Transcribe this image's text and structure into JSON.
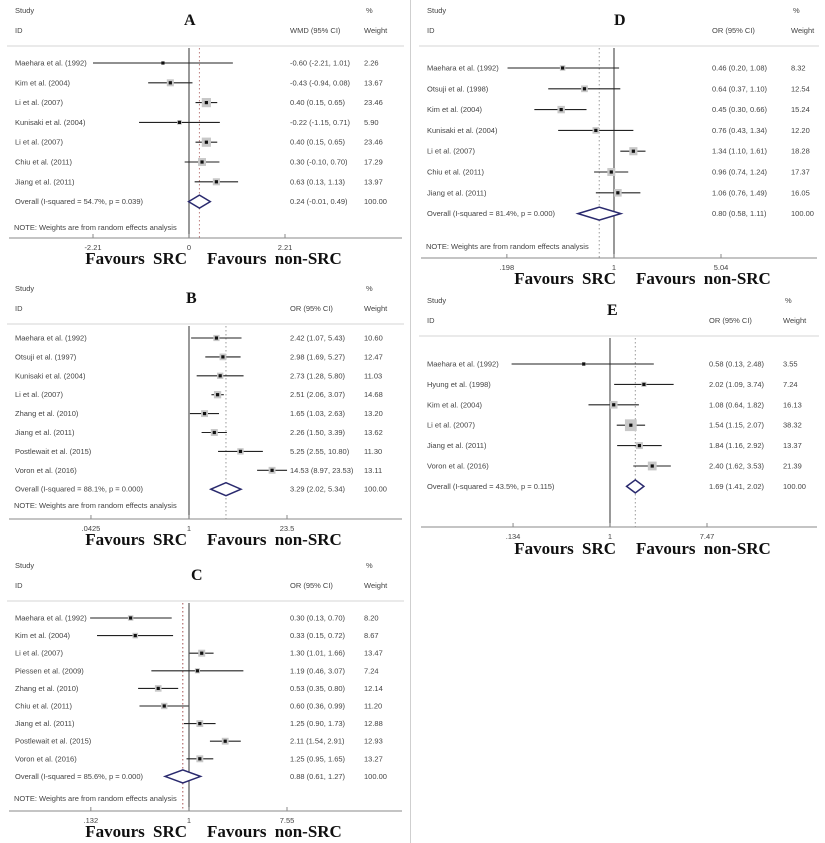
{
  "figure": {
    "background": "#ffffff",
    "note_text": "NOTE: Weights are from random effects analysis"
  },
  "colors": {
    "diamond": "#2a2a6e",
    "box": "#c8c8c8",
    "marker": "#111111",
    "ci_line": "#222222",
    "axis": "#8a8a8a",
    "text": "#444444",
    "rule": "#d4d4d4",
    "null_line": "#555555"
  },
  "chart_data": [
    {
      "type": "forest",
      "label": "A",
      "column_headers": {
        "study": "Study",
        "id": "ID",
        "percent": "%",
        "effect": "WMD (95% CI)",
        "weight": "Weight"
      },
      "scale": "linear",
      "null_value": 0,
      "ticks": [
        {
          "value": -2.21,
          "label": "-2.21"
        },
        {
          "value": 0,
          "label": "0"
        },
        {
          "value": 2.21,
          "label": "2.21"
        }
      ],
      "studies": [
        {
          "id": "Maehara et al. (1992)",
          "est": -0.6,
          "lo": -2.21,
          "hi": 1.01,
          "ci_text": "-0.60 (-2.21, 1.01)",
          "weight": 2.26,
          "weight_text": "2.26"
        },
        {
          "id": "Kim et al. (2004)",
          "est": -0.43,
          "lo": -0.94,
          "hi": 0.08,
          "ci_text": "-0.43 (-0.94, 0.08)",
          "weight": 13.67,
          "weight_text": "13.67"
        },
        {
          "id": "Li et al. (2007)",
          "est": 0.4,
          "lo": 0.15,
          "hi": 0.65,
          "ci_text": "0.40 (0.15, 0.65)",
          "weight": 23.46,
          "weight_text": "23.46"
        },
        {
          "id": "Kunisaki et al. (2004)",
          "est": -0.22,
          "lo": -1.15,
          "hi": 0.71,
          "ci_text": "-0.22 (-1.15, 0.71)",
          "weight": 5.9,
          "weight_text": "5.90"
        },
        {
          "id": "Li et al. (2007)",
          "est": 0.4,
          "lo": 0.15,
          "hi": 0.65,
          "ci_text": "0.40 (0.15, 0.65)",
          "weight": 23.46,
          "weight_text": "23.46"
        },
        {
          "id": "Chiu et al. (2011)",
          "est": 0.3,
          "lo": -0.1,
          "hi": 0.7,
          "ci_text": "0.30 (-0.10, 0.70)",
          "weight": 17.29,
          "weight_text": "17.29"
        },
        {
          "id": "Jiang et al. (2011)",
          "est": 0.63,
          "lo": 0.13,
          "hi": 1.13,
          "ci_text": "0.63 (0.13, 1.13)",
          "weight": 13.97,
          "weight_text": "13.97"
        }
      ],
      "overall": {
        "id": "Overall  (I-squared = 54.7%, p = 0.039)",
        "est": 0.24,
        "lo": -0.01,
        "hi": 0.49,
        "ci_text": "0.24 (-0.01, 0.49)",
        "weight_text": "100.00"
      },
      "note": "NOTE: Weights are from random effects analysis",
      "favours_left": "Favours SRC",
      "favours_right": "Favours non-SRC",
      "dashed_color": "#bd7e7e"
    },
    {
      "type": "forest",
      "label": "B",
      "column_headers": {
        "study": "Study",
        "id": "ID",
        "percent": "%",
        "effect": "OR (95% CI)",
        "weight": "Weight"
      },
      "scale": "log",
      "null_value": 1,
      "ticks": [
        {
          "value": 0.0425,
          "label": ".0425"
        },
        {
          "value": 1,
          "label": "1"
        },
        {
          "value": 23.5,
          "label": "23.5"
        }
      ],
      "studies": [
        {
          "id": "Maehara et al. (1992)",
          "est": 2.42,
          "lo": 1.07,
          "hi": 5.43,
          "ci_text": "2.42 (1.07, 5.43)",
          "weight": 10.6,
          "weight_text": "10.60"
        },
        {
          "id": "Otsuji et al. (1997)",
          "est": 2.98,
          "lo": 1.69,
          "hi": 5.27,
          "ci_text": "2.98 (1.69, 5.27)",
          "weight": 12.47,
          "weight_text": "12.47"
        },
        {
          "id": "Kunisaki et al. (2004)",
          "est": 2.73,
          "lo": 1.28,
          "hi": 5.8,
          "ci_text": "2.73 (1.28, 5.80)",
          "weight": 11.03,
          "weight_text": "11.03"
        },
        {
          "id": "Li et al. (2007)",
          "est": 2.51,
          "lo": 2.06,
          "hi": 3.07,
          "ci_text": "2.51 (2.06, 3.07)",
          "weight": 14.68,
          "weight_text": "14.68"
        },
        {
          "id": "Zhang et al. (2010)",
          "est": 1.65,
          "lo": 1.03,
          "hi": 2.63,
          "ci_text": "1.65 (1.03, 2.63)",
          "weight": 13.2,
          "weight_text": "13.20"
        },
        {
          "id": "Jiang et al. (2011)",
          "est": 2.26,
          "lo": 1.5,
          "hi": 3.39,
          "ci_text": "2.26 (1.50, 3.39)",
          "weight": 13.62,
          "weight_text": "13.62"
        },
        {
          "id": "Postlewait et al. (2015)",
          "est": 5.25,
          "lo": 2.55,
          "hi": 10.8,
          "ci_text": "5.25 (2.55, 10.80)",
          "weight": 11.3,
          "weight_text": "11.30"
        },
        {
          "id": "Voron et al. (2016)",
          "est": 14.53,
          "lo": 8.97,
          "hi": 23.53,
          "ci_text": "14.53 (8.97, 23.53)",
          "weight": 13.11,
          "weight_text": "13.11"
        }
      ],
      "overall": {
        "id": "Overall  (I-squared = 88.1%, p = 0.000)",
        "est": 3.29,
        "lo": 2.02,
        "hi": 5.34,
        "ci_text": "3.29 (2.02, 5.34)",
        "weight_text": "100.00"
      },
      "note": "NOTE: Weights are from random effects analysis",
      "favours_left": "Favours SRC",
      "favours_right": "Favours non-SRC",
      "dashed_color": "#9a9a9a"
    },
    {
      "type": "forest",
      "label": "C",
      "column_headers": {
        "study": "Study",
        "id": "ID",
        "percent": "%",
        "effect": "OR (95% CI)",
        "weight": "Weight"
      },
      "scale": "log",
      "null_value": 1,
      "ticks": [
        {
          "value": 0.132,
          "label": ".132"
        },
        {
          "value": 1,
          "label": "1"
        },
        {
          "value": 7.55,
          "label": "7.55"
        }
      ],
      "studies": [
        {
          "id": "Maehara et al. (1992)",
          "est": 0.3,
          "lo": 0.13,
          "hi": 0.7,
          "ci_text": "0.30 (0.13, 0.70)",
          "weight": 8.2,
          "weight_text": "8.20"
        },
        {
          "id": "Kim et al. (2004)",
          "est": 0.33,
          "lo": 0.15,
          "hi": 0.72,
          "ci_text": "0.33 (0.15, 0.72)",
          "weight": 8.67,
          "weight_text": "8.67"
        },
        {
          "id": "Li et al. (2007)",
          "est": 1.3,
          "lo": 1.01,
          "hi": 1.66,
          "ci_text": "1.30 (1.01, 1.66)",
          "weight": 13.47,
          "weight_text": "13.47"
        },
        {
          "id": "Piessen et al. (2009)",
          "est": 1.19,
          "lo": 0.46,
          "hi": 3.07,
          "ci_text": "1.19 (0.46, 3.07)",
          "weight": 7.24,
          "weight_text": "7.24"
        },
        {
          "id": "Zhang et al. (2010)",
          "est": 0.53,
          "lo": 0.35,
          "hi": 0.8,
          "ci_text": "0.53 (0.35, 0.80)",
          "weight": 12.14,
          "weight_text": "12.14"
        },
        {
          "id": "Chiu et al. (2011)",
          "est": 0.6,
          "lo": 0.36,
          "hi": 0.99,
          "ci_text": "0.60 (0.36, 0.99)",
          "weight": 11.2,
          "weight_text": "11.20"
        },
        {
          "id": "Jiang et al. (2011)",
          "est": 1.25,
          "lo": 0.9,
          "hi": 1.73,
          "ci_text": "1.25 (0.90, 1.73)",
          "weight": 12.88,
          "weight_text": "12.88"
        },
        {
          "id": "Postlewait et al. (2015)",
          "est": 2.11,
          "lo": 1.54,
          "hi": 2.91,
          "ci_text": "2.11 (1.54, 2.91)",
          "weight": 12.93,
          "weight_text": "12.93"
        },
        {
          "id": "Voron et al. (2016)",
          "est": 1.25,
          "lo": 0.95,
          "hi": 1.65,
          "ci_text": "1.25 (0.95, 1.65)",
          "weight": 13.27,
          "weight_text": "13.27"
        }
      ],
      "overall": {
        "id": "Overall  (I-squared = 85.6%, p = 0.000)",
        "est": 0.88,
        "lo": 0.61,
        "hi": 1.27,
        "ci_text": "0.88 (0.61, 1.27)",
        "weight_text": "100.00"
      },
      "note": "NOTE: Weights are from random effects analysis",
      "favours_left": "Favours SRC",
      "favours_right": "Favours non-SRC",
      "dashed_color": "#a65353"
    },
    {
      "type": "forest",
      "label": "D",
      "column_headers": {
        "study": "Study",
        "id": "ID",
        "percent": "%",
        "effect": "OR (95% CI)",
        "weight": "Weight"
      },
      "scale": "log",
      "null_value": 1,
      "ticks": [
        {
          "value": 0.198,
          "label": ".198"
        },
        {
          "value": 1,
          "label": "1"
        },
        {
          "value": 5.04,
          "label": "5.04"
        }
      ],
      "studies": [
        {
          "id": "Maehara et al. (1992)",
          "est": 0.46,
          "lo": 0.2,
          "hi": 1.08,
          "ci_text": "0.46 (0.20, 1.08)",
          "weight": 8.32,
          "weight_text": "8.32"
        },
        {
          "id": "Otsuji et al. (1998)",
          "est": 0.64,
          "lo": 0.37,
          "hi": 1.1,
          "ci_text": "0.64 (0.37, 1.10)",
          "weight": 12.54,
          "weight_text": "12.54"
        },
        {
          "id": "Kim et al. (2004)",
          "est": 0.45,
          "lo": 0.3,
          "hi": 0.66,
          "ci_text": "0.45 (0.30, 0.66)",
          "weight": 15.24,
          "weight_text": "15.24"
        },
        {
          "id": "Kunisaki et al. (2004)",
          "est": 0.76,
          "lo": 0.43,
          "hi": 1.34,
          "ci_text": "0.76 (0.43, 1.34)",
          "weight": 12.2,
          "weight_text": "12.20"
        },
        {
          "id": "Li et al. (2007)",
          "est": 1.34,
          "lo": 1.1,
          "hi": 1.61,
          "ci_text": "1.34 (1.10, 1.61)",
          "weight": 18.28,
          "weight_text": "18.28"
        },
        {
          "id": "Chiu et al. (2011)",
          "est": 0.96,
          "lo": 0.74,
          "hi": 1.24,
          "ci_text": "0.96 (0.74, 1.24)",
          "weight": 17.37,
          "weight_text": "17.37"
        },
        {
          "id": "Jiang et al. (2011)",
          "est": 1.06,
          "lo": 0.76,
          "hi": 1.49,
          "ci_text": "1.06 (0.76, 1.49)",
          "weight": 16.05,
          "weight_text": "16.05"
        }
      ],
      "overall": {
        "id": "Overall  (I-squared = 81.4%, p = 0.000)",
        "est": 0.8,
        "lo": 0.58,
        "hi": 1.11,
        "ci_text": "0.80 (0.58, 1.11)",
        "weight_text": "100.00"
      },
      "note": "NOTE: Weights are from random effects analysis",
      "favours_left": "Favours SRC",
      "favours_right": "Favours non-SRC",
      "dashed_color": "#9a9a9a"
    },
    {
      "type": "forest",
      "label": "E",
      "column_headers": {
        "study": "Study",
        "id": "ID",
        "percent": "%",
        "effect": "OR (95% CI)",
        "weight": "Weight"
      },
      "scale": "log",
      "null_value": 1,
      "ticks": [
        {
          "value": 0.134,
          "label": ".134"
        },
        {
          "value": 1,
          "label": "1"
        },
        {
          "value": 7.47,
          "label": "7.47"
        }
      ],
      "studies": [
        {
          "id": "Maehara et al. (1992)",
          "est": 0.58,
          "lo": 0.13,
          "hi": 2.48,
          "ci_text": "0.58 (0.13, 2.48)",
          "weight": 3.55,
          "weight_text": "3.55"
        },
        {
          "id": "Hyung et al. (1998)",
          "est": 2.02,
          "lo": 1.09,
          "hi": 3.74,
          "ci_text": "2.02 (1.09, 3.74)",
          "weight": 7.24,
          "weight_text": "7.24"
        },
        {
          "id": "Kim et al. (2004)",
          "est": 1.08,
          "lo": 0.64,
          "hi": 1.82,
          "ci_text": "1.08 (0.64, 1.82)",
          "weight": 16.13,
          "weight_text": "16.13"
        },
        {
          "id": "Li et al. (2007)",
          "est": 1.54,
          "lo": 1.15,
          "hi": 2.07,
          "ci_text": "1.54 (1.15, 2.07)",
          "weight": 38.32,
          "weight_text": "38.32"
        },
        {
          "id": "Jiang et al. (2011)",
          "est": 1.84,
          "lo": 1.16,
          "hi": 2.92,
          "ci_text": "1.84 (1.16, 2.92)",
          "weight": 13.37,
          "weight_text": "13.37"
        },
        {
          "id": "Voron et al. (2016)",
          "est": 2.4,
          "lo": 1.62,
          "hi": 3.53,
          "ci_text": "2.40 (1.62, 3.53)",
          "weight": 21.39,
          "weight_text": "21.39"
        }
      ],
      "overall": {
        "id": "Overall  (I-squared = 43.5%, p = 0.115)",
        "est": 1.69,
        "lo": 1.41,
        "hi": 2.02,
        "ci_text": "1.69 (1.41, 2.02)",
        "weight_text": "100.00"
      },
      "note": null,
      "favours_left": "Favours SRC",
      "favours_right": "Favours non-SRC",
      "dashed_color": "#9a9a9a"
    }
  ]
}
